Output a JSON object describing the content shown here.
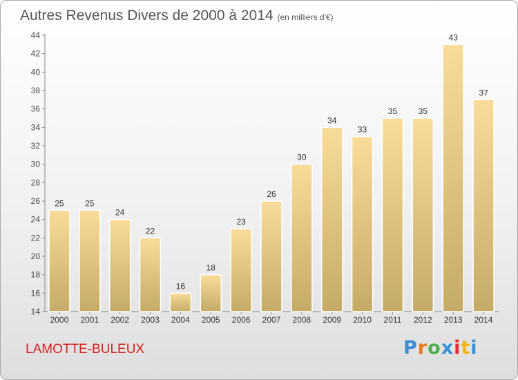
{
  "header": {
    "title": "Autres Revenus Divers de 2000 à 2014",
    "unit": "(en milliers d'€)"
  },
  "footer": {
    "commune": "LAMOTTE-BULEUX",
    "logo_text": "Proxiti"
  },
  "colors": {
    "bar_light": "#f9dc9a",
    "bar_dark": "#c4ab66",
    "commune": "#d62020",
    "logo": [
      "#3a8fd6",
      "#e77a1e",
      "#4bb04b",
      "#3a8fd6",
      "#e02f2f",
      "#f1b312",
      "#3a8fd6"
    ]
  },
  "chart_data": {
    "type": "bar",
    "title": "Autres Revenus Divers de 2000 à 2014",
    "categories": [
      "2000",
      "2001",
      "2002",
      "2003",
      "2004",
      "2005",
      "2006",
      "2007",
      "2008",
      "2009",
      "2010",
      "2011",
      "2012",
      "2013",
      "2014"
    ],
    "values": [
      25,
      25,
      24,
      22,
      16,
      18,
      23,
      26,
      30,
      34,
      33,
      35,
      35,
      43,
      37
    ],
    "ylim": [
      14,
      44
    ],
    "yticks": [
      14,
      16,
      18,
      20,
      22,
      24,
      26,
      28,
      30,
      32,
      34,
      36,
      38,
      40,
      42,
      44
    ],
    "grid": false,
    "legend": "none"
  }
}
